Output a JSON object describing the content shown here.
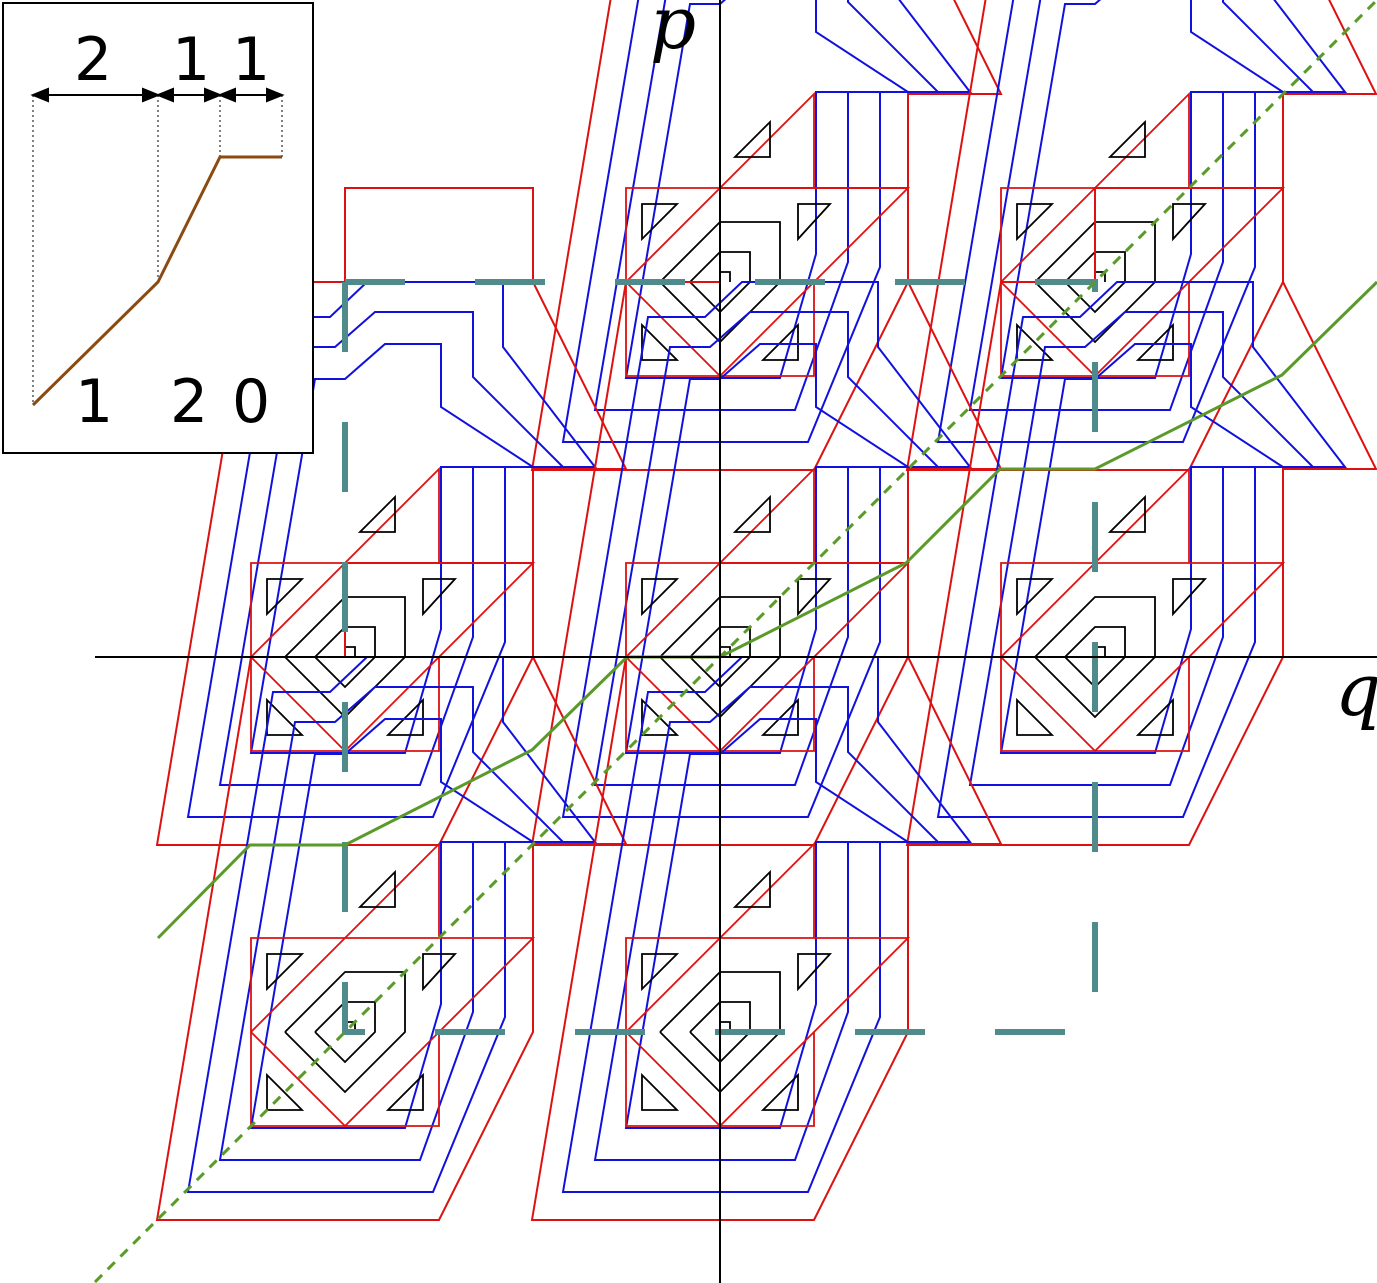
{
  "axes": {
    "x_label": "q",
    "y_label": "p"
  },
  "inset": {
    "top_labels": [
      "2",
      "1",
      "1"
    ],
    "bottom_labels": [
      "1",
      "2",
      "0"
    ]
  },
  "colors": {
    "outer_contour": "#dd1111",
    "mid_contour": "#1111dd",
    "inner_contour": "#000000",
    "cell_boundary": "#4f8b8b",
    "green_path": "#5a9a2a",
    "brown_path": "#8b4a10"
  }
}
